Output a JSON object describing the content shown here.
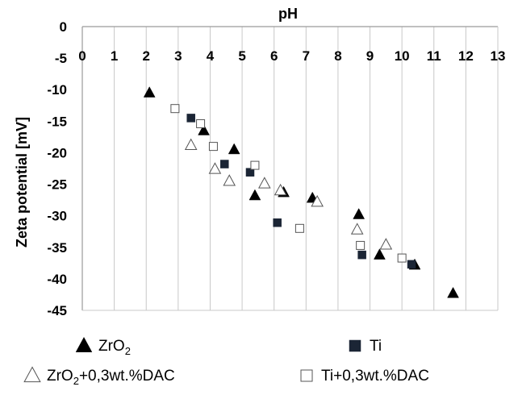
{
  "chart_data": {
    "type": "scatter",
    "xlabel": "pH",
    "ylabel": "Zeta potential [mV]",
    "xlim": [
      0,
      13
    ],
    "ylim": [
      -45,
      0
    ],
    "x_ticks": [
      "0",
      "1",
      "2",
      "3",
      "4",
      "5",
      "6",
      "7",
      "8",
      "9",
      "10",
      "11",
      "12",
      "13"
    ],
    "y_ticks": [
      "0",
      "-5",
      "-10",
      "-15",
      "-20",
      "-25",
      "-30",
      "-35",
      "-40",
      "-45"
    ],
    "grid": "vertical",
    "x_axis_position": "top",
    "legend_position": "bottom",
    "series": [
      {
        "name": "ZrO2",
        "name_main": "ZrO",
        "name_sub": "2",
        "name_suffix": "",
        "marker": "triangle-filled",
        "color": "#000000",
        "points": [
          [
            2.1,
            -10.5
          ],
          [
            3.8,
            -16.5
          ],
          [
            4.75,
            -19.5
          ],
          [
            5.4,
            -26.8
          ],
          [
            6.3,
            -26.3
          ],
          [
            7.2,
            -27.2
          ],
          [
            8.65,
            -29.8
          ],
          [
            9.3,
            -36.2
          ],
          [
            10.4,
            -37.8
          ],
          [
            11.6,
            -42.3
          ]
        ]
      },
      {
        "name": "Ti",
        "name_main": "Ti",
        "name_sub": "",
        "name_suffix": "",
        "marker": "square-filled",
        "color": "#1b2535",
        "points": [
          [
            3.4,
            -14.5
          ],
          [
            4.45,
            -21.8
          ],
          [
            5.25,
            -23.1
          ],
          [
            6.1,
            -31.1
          ],
          [
            8.75,
            -36.2
          ],
          [
            10.3,
            -37.7
          ]
        ]
      },
      {
        "name": "ZrO2+0,3wt.%DAC",
        "name_main": "ZrO",
        "name_sub": "2",
        "name_suffix": "+0,3wt.%DAC",
        "marker": "triangle-open",
        "color": "#000000",
        "points": [
          [
            3.4,
            -18.8
          ],
          [
            4.15,
            -22.6
          ],
          [
            4.6,
            -24.5
          ],
          [
            5.7,
            -24.9
          ],
          [
            6.2,
            -26.0
          ],
          [
            7.35,
            -27.8
          ],
          [
            8.6,
            -32.2
          ],
          [
            9.5,
            -34.6
          ]
        ]
      },
      {
        "name": "Ti+0,3wt.%DAC",
        "name_main": "Ti+0,3wt.%DAC",
        "name_sub": "",
        "name_suffix": "",
        "marker": "square-open",
        "color": "#000000",
        "points": [
          [
            2.9,
            -13.0
          ],
          [
            3.7,
            -15.4
          ],
          [
            4.1,
            -19.0
          ],
          [
            5.4,
            -22.0
          ],
          [
            6.8,
            -32.0
          ],
          [
            8.7,
            -34.7
          ],
          [
            10.0,
            -36.7
          ]
        ]
      }
    ]
  }
}
